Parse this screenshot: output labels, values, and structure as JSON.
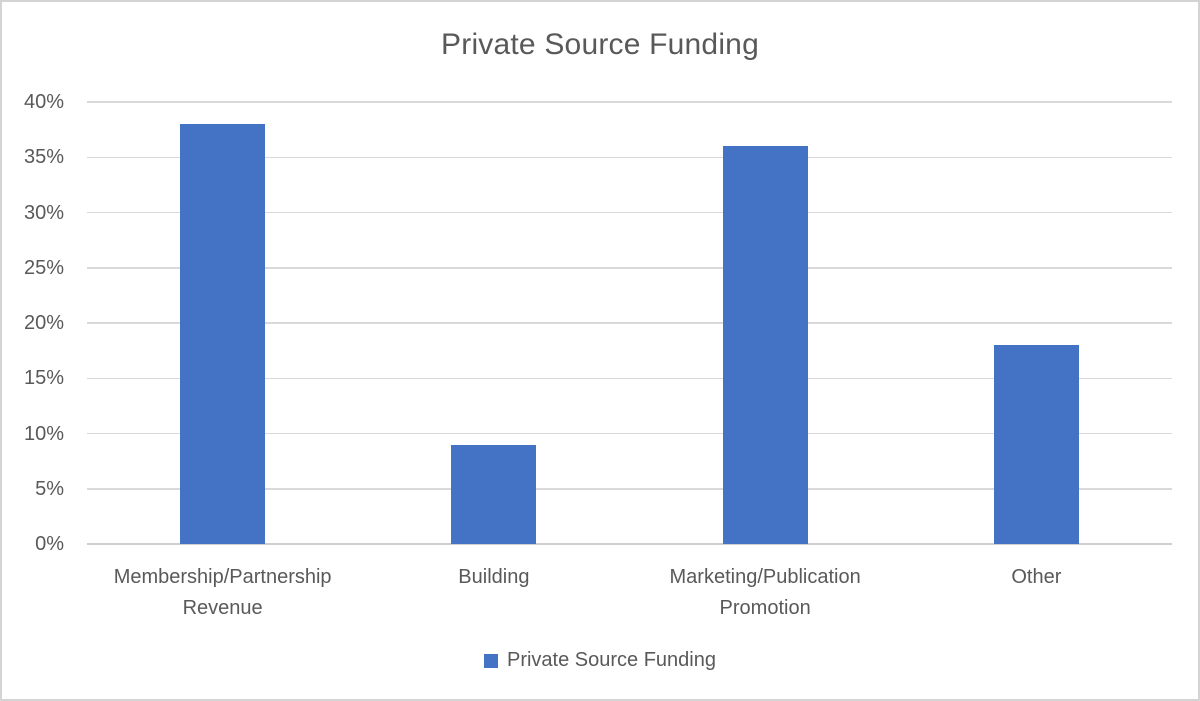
{
  "chart_data": {
    "type": "bar",
    "title": "Private Source Funding",
    "series_name": "Private Source Funding",
    "categories": [
      "Membership/Partnership Revenue",
      "Building",
      "Marketing/Publication Promotion",
      "Other"
    ],
    "values": [
      38,
      9,
      36,
      18
    ],
    "unit": "%",
    "xlabel": "",
    "ylabel": "",
    "ylim": [
      0,
      40
    ],
    "yticks": [
      0,
      5,
      10,
      15,
      20,
      25,
      30,
      35,
      40
    ],
    "ytick_labels": [
      "0%",
      "5%",
      "10%",
      "15%",
      "20%",
      "25%",
      "30%",
      "35%",
      "40%"
    ],
    "grid": true,
    "legend_position": "bottom",
    "bar_color": "#4472C4"
  },
  "legend": {
    "items": [
      {
        "label": "Private Source Funding",
        "color": "#4472C4"
      }
    ]
  },
  "colors": {
    "bar": "#4472C4",
    "text": "#595959",
    "gridline": "#D9D9D9",
    "axis_line": "#CFCFCF",
    "frame_border": "#D4D4D4",
    "background": "#FFFFFF"
  }
}
